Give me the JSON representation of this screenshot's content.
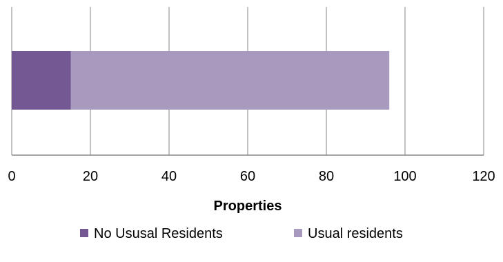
{
  "chart_data": {
    "type": "bar",
    "orientation": "horizontal",
    "stacked": true,
    "categories": [
      ""
    ],
    "series": [
      {
        "name": "No Ususal Residents",
        "values": [
          15
        ],
        "color": "#745894"
      },
      {
        "name": "Usual residents",
        "values": [
          81
        ],
        "color": "#a899be"
      }
    ],
    "xlabel": "Properties",
    "xlim": [
      0,
      120
    ],
    "xticks": [
      "0",
      "20",
      "40",
      "60",
      "80",
      "100",
      "120"
    ],
    "xtick_values": [
      0,
      20,
      40,
      60,
      80,
      100,
      120
    ],
    "grid": true,
    "legend": "bottom"
  }
}
